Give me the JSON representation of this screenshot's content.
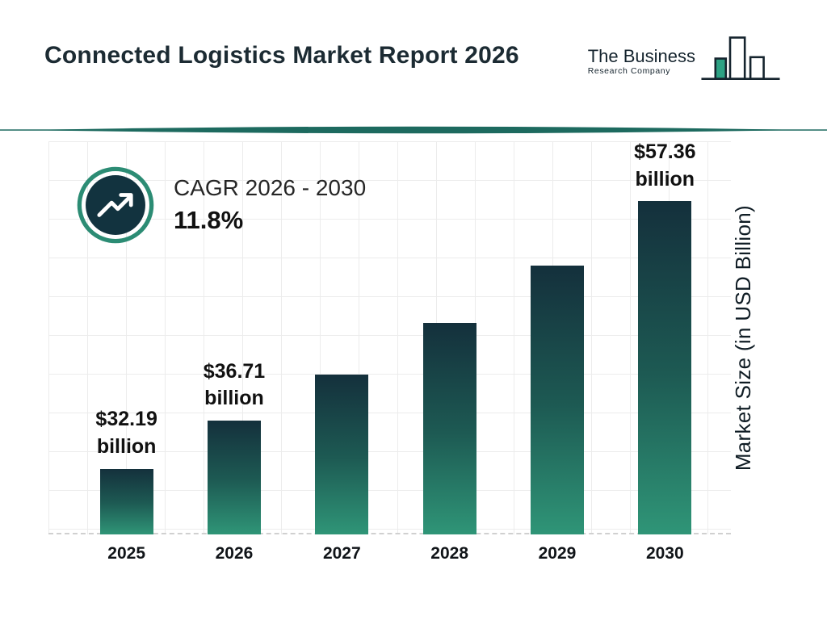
{
  "header": {
    "title": "Connected Logistics Market Report 2026",
    "logo": {
      "line1": "The Business",
      "line2": "Research Company"
    }
  },
  "cagr": {
    "label": "CAGR 2026 - 2030",
    "value": "11.8%"
  },
  "chart_data": {
    "type": "bar",
    "title": "Connected Logistics Market Report 2026",
    "categories": [
      "2025",
      "2026",
      "2027",
      "2028",
      "2029",
      "2030"
    ],
    "values": [
      32.19,
      36.71,
      41.04,
      45.89,
      51.3,
      57.36
    ],
    "estimated": [
      false,
      false,
      true,
      true,
      true,
      false
    ],
    "bar_labels": [
      {
        "value": "$32.19",
        "unit": "billion"
      },
      {
        "value": "$36.71",
        "unit": "billion"
      },
      null,
      null,
      null,
      {
        "value": "$57.36",
        "unit": "billion"
      }
    ],
    "xlabel": "",
    "ylabel": "Market Size (in USD Billion)",
    "ylim": [
      26,
      63
    ],
    "grid": true,
    "legend": false
  },
  "colors": {
    "bar_top": "#14303c",
    "bar_bottom": "#2f9577",
    "accent_teal": "#1d6a5f",
    "ring_teal": "#2c8c74",
    "badge_navy": "#12333f",
    "title_text": "#1c2b33",
    "label_text": "#111111",
    "grid_line": "#ececec",
    "axis_dash": "#d0d0d0"
  }
}
